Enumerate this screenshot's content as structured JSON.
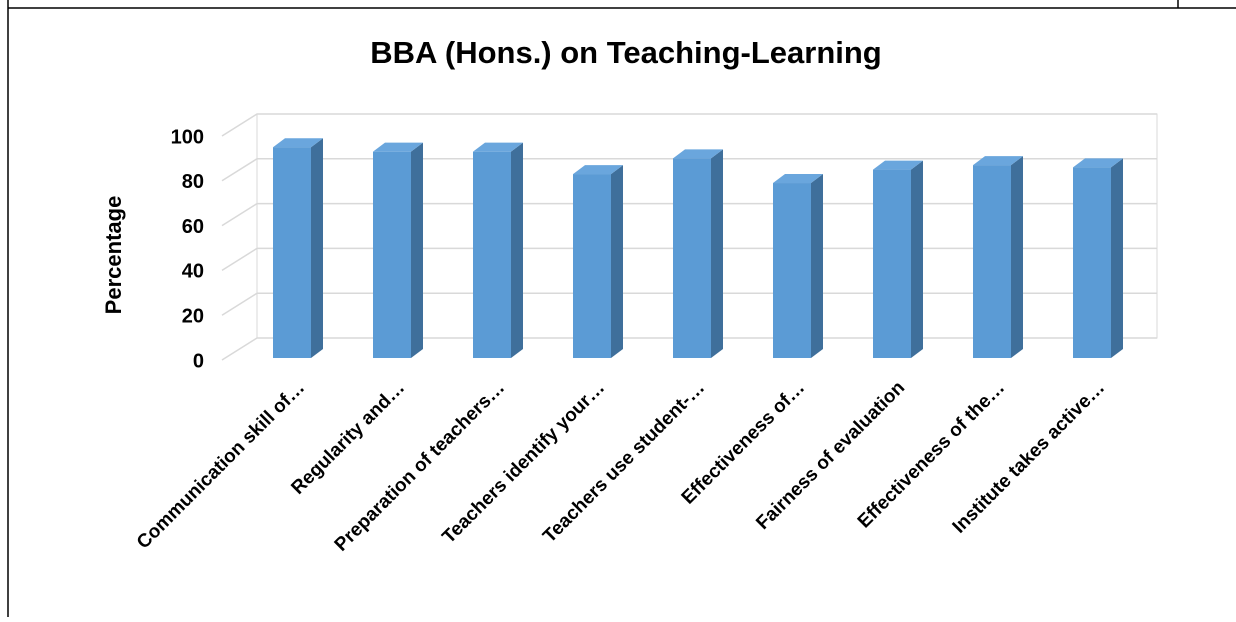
{
  "chart_data": {
    "type": "bar3d",
    "title": "BBA (Hons.) on Teaching-Learning",
    "y_label": "Percentage",
    "categories": [
      "Communication skill of…",
      "Regularity and…",
      "Preparation of teachers…",
      "Teachers identify your…",
      "Teachers use student-…",
      "Effectiveness of…",
      "Fairness of evaluation",
      "Effectiveness of the…",
      "Institute takes active…"
    ],
    "values": [
      95,
      93,
      93,
      83,
      90,
      79,
      85,
      87,
      86
    ],
    "color": "#5b9bd5",
    "side_color": "#3f6f9b",
    "top_color": "#6aa6dd",
    "ylim": [
      0,
      100
    ],
    "yticks": [
      0,
      20,
      40,
      60,
      80,
      100
    ],
    "grid": true
  }
}
